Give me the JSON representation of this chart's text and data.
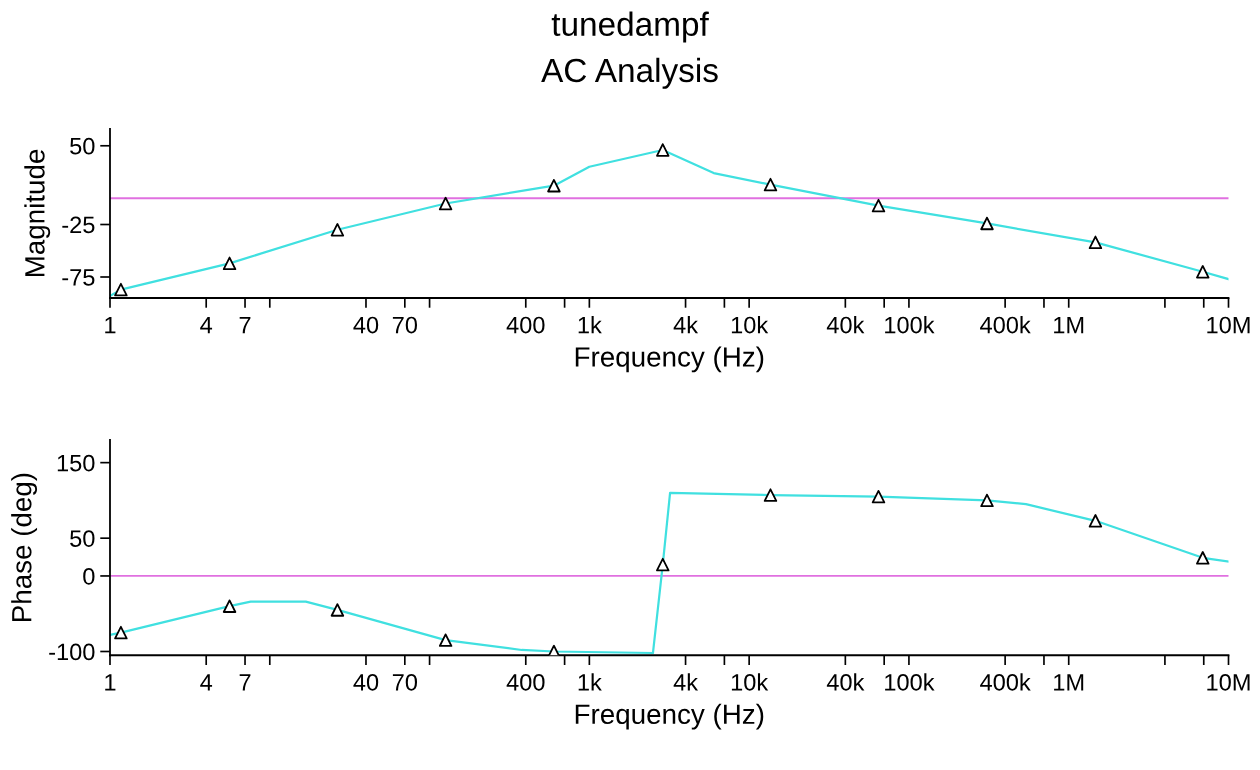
{
  "chart_data": [
    {
      "type": "line",
      "title": "tunedampf",
      "subtitle": "AC Analysis",
      "xlabel": "Frequency (Hz)",
      "ylabel": "Magnitude",
      "log": "x",
      "grid": false,
      "xlim": [
        1,
        10000000
      ],
      "ylim": [
        -95,
        66
      ],
      "xticks": [
        1,
        4,
        7,
        {
          "value": 10,
          "label": null
        },
        40,
        70,
        {
          "value": 100,
          "label": null
        },
        400,
        {
          "value": 700,
          "label": null
        },
        {
          "value": 1000,
          "label": "1k"
        },
        {
          "value": 4000,
          "label": "4k"
        },
        {
          "value": 7000,
          "label": null
        },
        {
          "value": 10000,
          "label": "10k"
        },
        {
          "value": 40000,
          "label": "40k"
        },
        {
          "value": 70000,
          "label": null
        },
        {
          "value": 100000,
          "label": "100k"
        },
        {
          "value": 400000,
          "label": "400k"
        },
        {
          "value": 700000,
          "label": null
        },
        {
          "value": 1000000,
          "label": "1M"
        },
        {
          "value": 4000000,
          "label": null
        },
        {
          "value": 7000000,
          "label": null
        },
        {
          "value": 10000000,
          "label": "10M"
        }
      ],
      "yticks": [
        50,
        -25,
        -75
      ],
      "ref_lines": [
        {
          "axis": "y",
          "value": 0,
          "color": "#e070e0"
        }
      ],
      "series": [
        {
          "color": "#40e0e0",
          "marker": "none",
          "line_style": "solid",
          "x": [
            1,
            1.17,
            5.6,
            26.5,
            126,
            600,
            1000,
            2880,
            6000,
            13600,
            64500,
            308000,
            1470000,
            6900000,
            10000000
          ],
          "values": [
            -93,
            -87,
            -62,
            -30,
            -5,
            12,
            30,
            46,
            24,
            13,
            -7,
            -24,
            -42,
            -70,
            -77
          ]
        },
        {
          "type": "scatter",
          "color": "#000000",
          "marker": "triangle",
          "x": [
            1.17,
            5.6,
            26.5,
            126,
            600,
            2880,
            13600,
            64500,
            308000,
            1470000,
            6900000
          ],
          "values": [
            -87,
            -62,
            -30,
            -5,
            12,
            46,
            13,
            -7,
            -24,
            -42,
            -70
          ]
        }
      ]
    },
    {
      "type": "line",
      "xlabel": "Frequency (Hz)",
      "ylabel": "Phase (deg)",
      "log": "x",
      "grid": false,
      "xlim": [
        1,
        10000000
      ],
      "ylim": [
        -105,
        180
      ],
      "xticks": [
        1,
        4,
        7,
        {
          "value": 10,
          "label": null
        },
        40,
        70,
        {
          "value": 100,
          "label": null
        },
        400,
        {
          "value": 700,
          "label": null
        },
        {
          "value": 1000,
          "label": "1k"
        },
        {
          "value": 4000,
          "label": "4k"
        },
        {
          "value": 7000,
          "label": null
        },
        {
          "value": 10000,
          "label": "10k"
        },
        {
          "value": 40000,
          "label": "40k"
        },
        {
          "value": 70000,
          "label": null
        },
        {
          "value": 100000,
          "label": "100k"
        },
        {
          "value": 400000,
          "label": "400k"
        },
        {
          "value": 700000,
          "label": null
        },
        {
          "value": 1000000,
          "label": "1M"
        },
        {
          "value": 4000000,
          "label": null
        },
        {
          "value": 7000000,
          "label": null
        },
        {
          "value": 10000000,
          "label": "10M"
        }
      ],
      "yticks": [
        150,
        50,
        0,
        -100
      ],
      "ref_lines": [
        {
          "axis": "y",
          "value": 0,
          "color": "#e070e0"
        }
      ],
      "series": [
        {
          "color": "#40e0e0",
          "marker": "none",
          "line_style": "solid",
          "x": [
            1,
            1.17,
            5.6,
            7.6,
            16.8,
            26.5,
            126,
            377,
            600,
            2500,
            2880,
            3200,
            13600,
            64500,
            308000,
            540000,
            1470000,
            6900000,
            10000000
          ],
          "values": [
            -78,
            -75,
            -40,
            -34,
            -34,
            -45,
            -85,
            -98,
            -100,
            -102,
            15,
            110,
            107,
            105,
            100,
            95,
            73,
            24,
            19
          ]
        },
        {
          "type": "scatter",
          "color": "#000000",
          "marker": "triangle",
          "x": [
            1.17,
            5.6,
            26.5,
            126,
            600,
            2880,
            13600,
            64500,
            308000,
            1470000,
            6900000
          ],
          "values": [
            -75,
            -40,
            -45,
            -85,
            -100,
            15,
            107,
            105,
            100,
            73,
            24
          ]
        }
      ]
    }
  ]
}
